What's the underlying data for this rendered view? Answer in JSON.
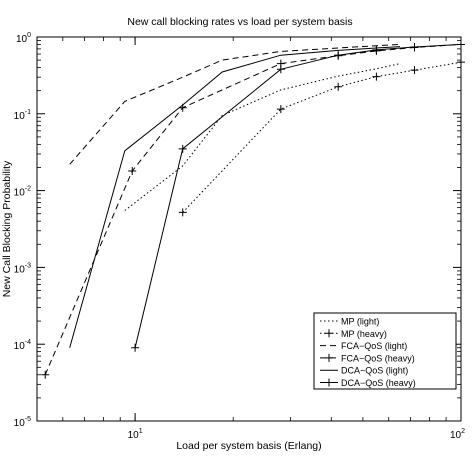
{
  "chart_data": {
    "type": "line",
    "title": "New call blocking rates vs load per system basis",
    "xlabel": "Load per system basis (Erlang)",
    "ylabel": "New Call Blocking Probability",
    "xscale": "log",
    "yscale": "log",
    "xlim": [
      5,
      100
    ],
    "ylim": [
      1e-05,
      1
    ],
    "x_ticks": [
      {
        "value": 10,
        "base": "10",
        "exp": "1"
      },
      {
        "value": 100,
        "base": "10",
        "exp": "2"
      }
    ],
    "y_ticks": [
      {
        "value": 1e-05,
        "base": "10",
        "exp": "-5"
      },
      {
        "value": 0.0001,
        "base": "10",
        "exp": "-4"
      },
      {
        "value": 0.001,
        "base": "10",
        "exp": "-3"
      },
      {
        "value": 0.01,
        "base": "10",
        "exp": "-2"
      },
      {
        "value": 0.1,
        "base": "10",
        "exp": "-1"
      },
      {
        "value": 1,
        "base": "10",
        "exp": "0"
      }
    ],
    "grid": false,
    "legend_position": "bottom-right",
    "series": [
      {
        "name": "MP (light)",
        "style": "dotted",
        "marker": "none",
        "x": [
          9.3,
          14,
          18.5,
          28,
          42,
          55,
          65
        ],
        "y": [
          0.0055,
          0.021,
          0.095,
          0.205,
          0.31,
          0.385,
          0.45
        ]
      },
      {
        "name": "MP (heavy)",
        "style": "dotted",
        "marker": "plus",
        "x": [
          14,
          28,
          42,
          55,
          72,
          100
        ],
        "y": [
          0.0052,
          0.115,
          0.225,
          0.305,
          0.37,
          0.47
        ]
      },
      {
        "name": "FCA−QoS (light)",
        "style": "dashed",
        "marker": "none",
        "x": [
          6.3,
          9.3,
          14,
          18.5,
          28,
          42,
          55,
          65
        ],
        "y": [
          0.022,
          0.145,
          0.3,
          0.5,
          0.65,
          0.72,
          0.77,
          0.8
        ]
      },
      {
        "name": "FCA−QoS (heavy)",
        "style": "dashed",
        "marker": "plus",
        "x": [
          5.3,
          9.8,
          14,
          28,
          42,
          55,
          72,
          100
        ],
        "y": [
          4e-05,
          0.018,
          0.12,
          0.45,
          0.57,
          0.66,
          0.73,
          0.8
        ]
      },
      {
        "name": "DCA−QoS (light)",
        "style": "solid",
        "marker": "none",
        "x": [
          6.3,
          9.3,
          14,
          18.5,
          28,
          42,
          55,
          65
        ],
        "y": [
          9e-05,
          0.033,
          0.13,
          0.35,
          0.58,
          0.67,
          0.72,
          0.75
        ]
      },
      {
        "name": "DCA−QoS (heavy)",
        "style": "solid",
        "marker": "plus",
        "x": [
          10,
          14,
          28,
          42,
          55,
          72,
          100
        ],
        "y": [
          9e-05,
          0.035,
          0.38,
          0.58,
          0.68,
          0.74,
          0.8
        ]
      }
    ]
  }
}
